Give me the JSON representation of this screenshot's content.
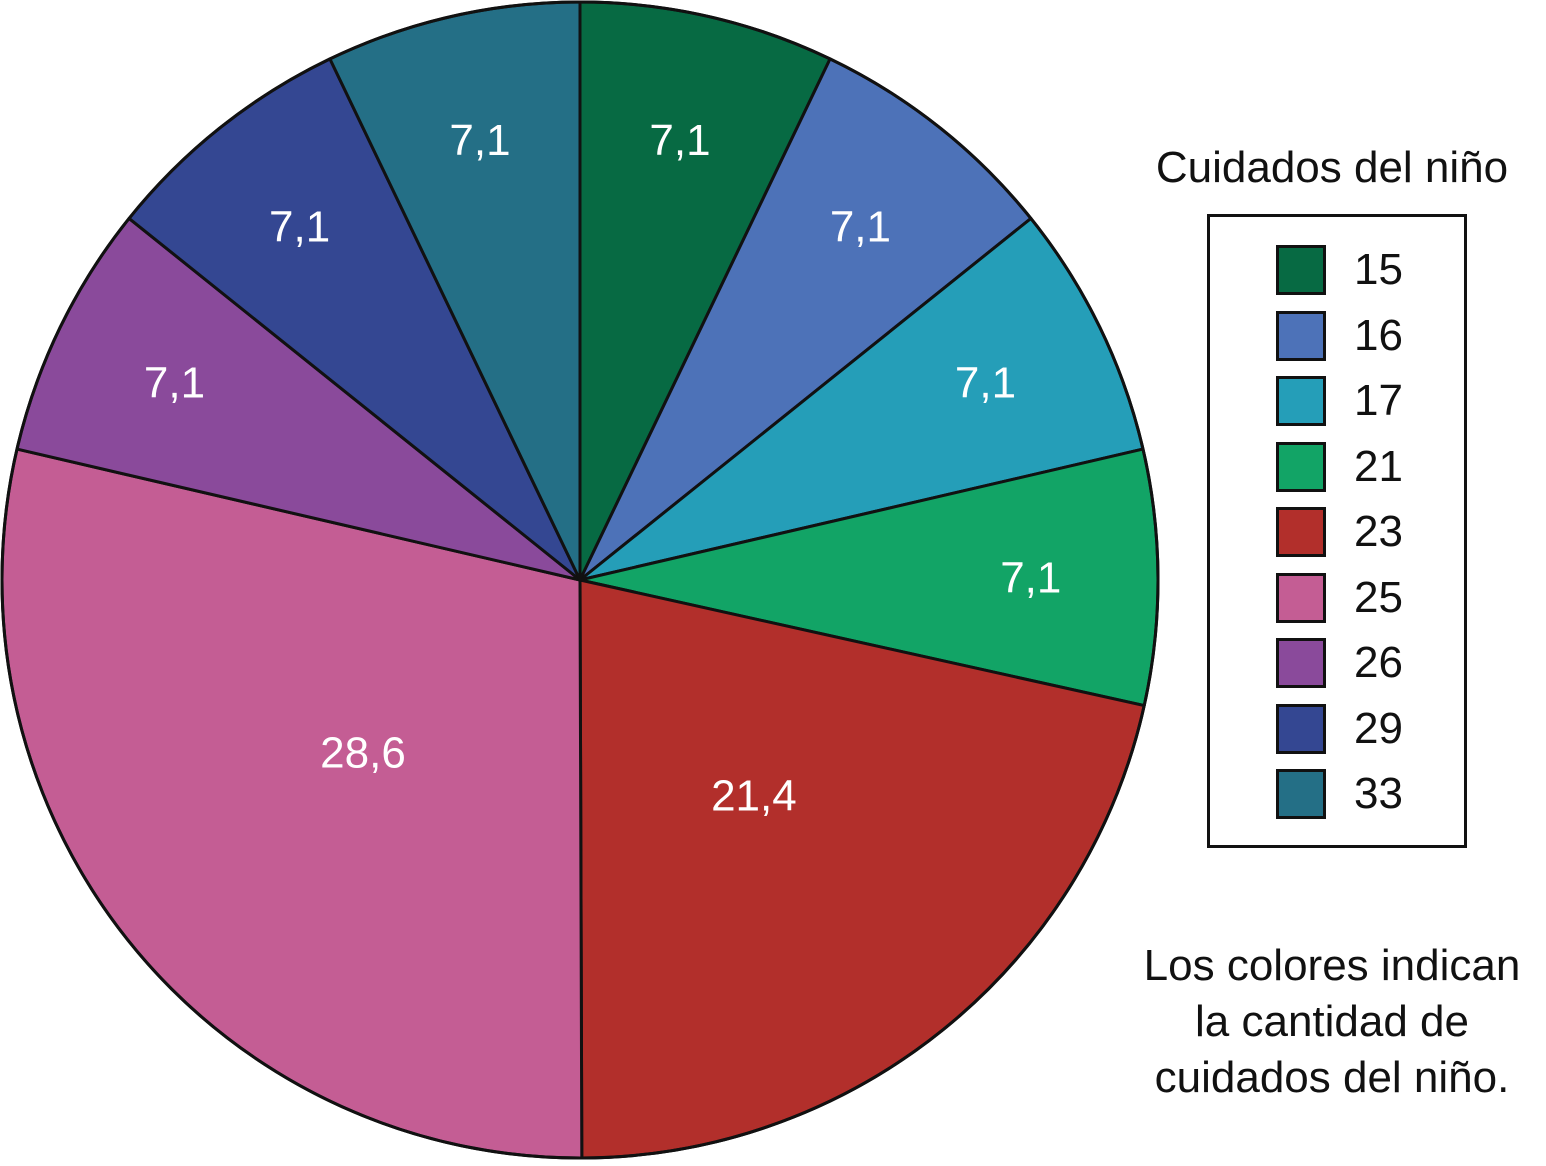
{
  "chart_data": {
    "type": "pie",
    "title": "",
    "slices": [
      {
        "category": "15",
        "value": 7.1,
        "label": "7,1",
        "color": "#076a43"
      },
      {
        "category": "16",
        "value": 7.1,
        "label": "7,1",
        "color": "#4d72b8"
      },
      {
        "category": "17",
        "value": 7.1,
        "label": "7,1",
        "color": "#259eb8"
      },
      {
        "category": "21",
        "value": 7.1,
        "label": "7,1",
        "color": "#12a466"
      },
      {
        "category": "23",
        "value": 21.4,
        "label": "21,4",
        "color": "#b22f2b"
      },
      {
        "category": "25",
        "value": 28.6,
        "label": "28,6",
        "color": "#c45d94"
      },
      {
        "category": "26",
        "value": 7.1,
        "label": "7,1",
        "color": "#8a4a9b"
      },
      {
        "category": "29",
        "value": 7.1,
        "label": "7,1",
        "color": "#344792"
      },
      {
        "category": "33",
        "value": 7.1,
        "label": "7,1",
        "color": "#246f86"
      }
    ],
    "start": "top",
    "direction": "clockwise",
    "legend": {
      "title": "Cuidados del niño",
      "placement": "right"
    }
  },
  "note": {
    "lines": [
      "Los colores indican",
      "la cantidad de",
      "cuidados del niño."
    ]
  }
}
